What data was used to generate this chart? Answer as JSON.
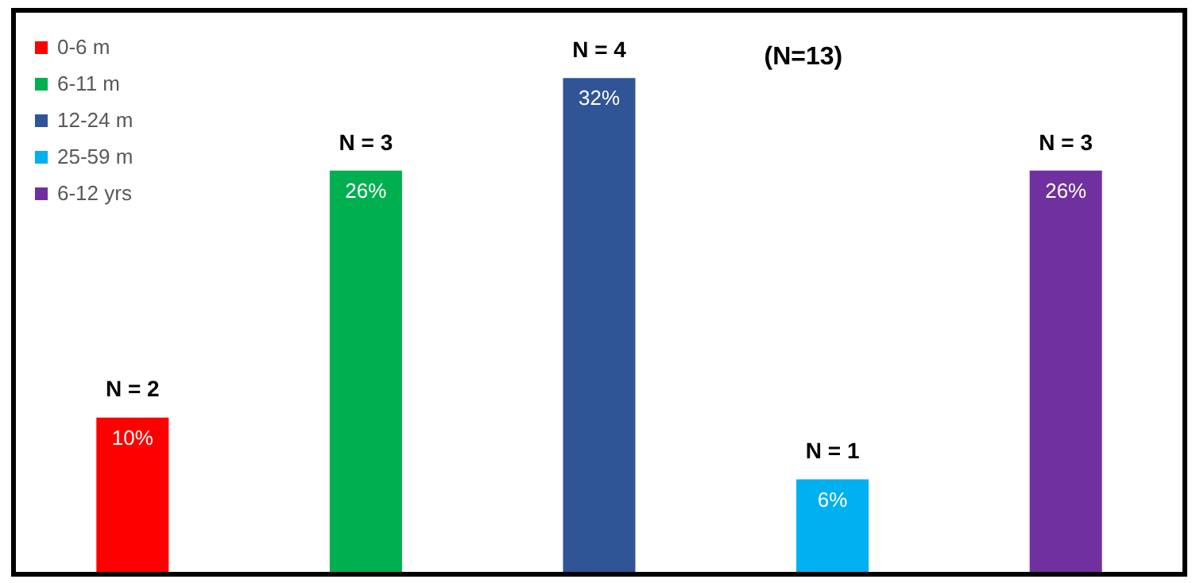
{
  "chart_data": {
    "type": "bar",
    "title": "(N=13)",
    "categories": [
      null,
      null,
      null,
      null,
      null
    ],
    "stacked": true,
    "series": [
      {
        "name": "0-6 m",
        "color": "#ff0000",
        "values": [
          10,
          null,
          null,
          null,
          null
        ],
        "value_labels": [
          "10%",
          null,
          null,
          null,
          null
        ]
      },
      {
        "name": "6-11 m",
        "color": "#00b050",
        "values": [
          null,
          26,
          null,
          null,
          null
        ],
        "value_labels": [
          null,
          "26%",
          null,
          null,
          null
        ]
      },
      {
        "name": "12-24 m",
        "color": "#2f5597",
        "values": [
          null,
          null,
          32,
          null,
          null
        ],
        "value_labels": [
          null,
          null,
          "32%",
          null,
          null
        ]
      },
      {
        "name": "25-59 m",
        "color": "#00b0f0",
        "values": [
          null,
          null,
          null,
          6,
          null
        ],
        "value_labels": [
          null,
          null,
          null,
          "6%",
          null
        ]
      },
      {
        "name": "6-12 yrs",
        "color": "#7030a0",
        "values": [
          null,
          null,
          null,
          null,
          26
        ],
        "value_labels": [
          null,
          null,
          null,
          null,
          "26%"
        ]
      }
    ],
    "annotations": [
      {
        "text": "N = 2",
        "y": 10
      },
      {
        "text": "N = 3",
        "y": 26
      },
      {
        "text": "N = 4",
        "y": 32
      },
      {
        "text": "N = 1",
        "y": 6
      },
      {
        "text": "N = 3",
        "y": 26
      }
    ],
    "legend": "top left",
    "grid": false
  }
}
